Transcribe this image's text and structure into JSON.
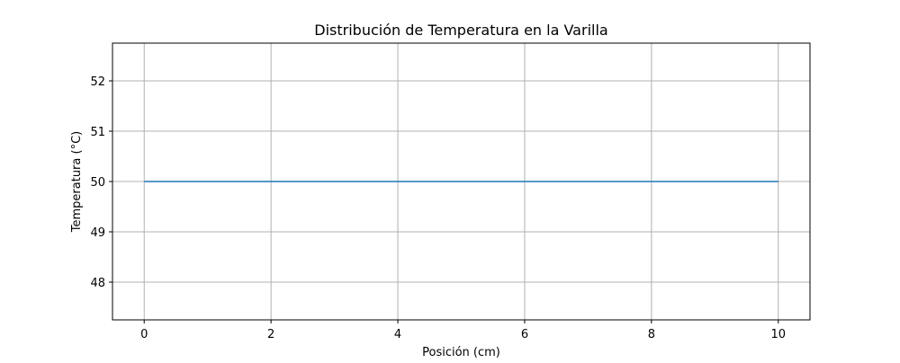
{
  "chart_data": {
    "type": "line",
    "title": "Distribución de Temperatura en la Varilla",
    "xlabel": "Posición (cm)",
    "ylabel": "Temperatura (°C)",
    "xlim": [
      -0.5,
      10.5
    ],
    "ylim": [
      47.25,
      52.75
    ],
    "xticks": [
      0,
      2,
      4,
      6,
      8,
      10
    ],
    "yticks": [
      48,
      49,
      50,
      51,
      52
    ],
    "grid": true,
    "legend": "none",
    "series": [
      {
        "color": "#1f77b4",
        "x": [
          0,
          10
        ],
        "y": [
          50,
          50
        ]
      }
    ]
  }
}
